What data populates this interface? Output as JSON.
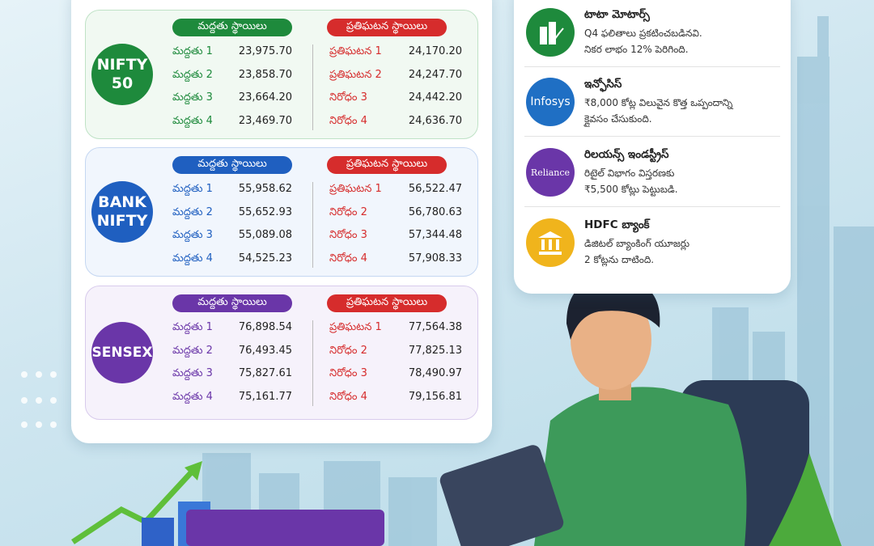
{
  "indices": [
    {
      "logo": [
        "NIFTY",
        "50"
      ],
      "color": "#1e8a3c",
      "tint": "#f1f9f2",
      "border": "#bfe2c6",
      "support_header": "మద్దతు స్థాయిలు",
      "resistance_header": "ప్రతిఘటన స్థాయిలు",
      "support": [
        {
          "label": "మద్దతు 1",
          "value": "23,975.70"
        },
        {
          "label": "మద్దతు 2",
          "value": "23,858.70"
        },
        {
          "label": "మద్దతు 3",
          "value": "23,664.20"
        },
        {
          "label": "మద్దతు 4",
          "value": "23,469.70"
        }
      ],
      "resistance": [
        {
          "label": "ప్రతిఘటన 1",
          "value": "24,170.20"
        },
        {
          "label": "ప్రతిఘటన 2",
          "value": "24,247.70"
        },
        {
          "label": "నిరోధం 3",
          "value": "24,442.20"
        },
        {
          "label": "నిరోధం 4",
          "value": "24,636.70"
        }
      ]
    },
    {
      "logo": [
        "BANK",
        "NIFTY"
      ],
      "color": "#1f5fc0",
      "tint": "#f1f6fd",
      "border": "#c5d7f2",
      "support_header": "మద్దతు స్థాయిలు",
      "resistance_header": "ప్రతిఘటన స్థాయిలు",
      "support": [
        {
          "label": "మద్దతు 1",
          "value": "55,958.62"
        },
        {
          "label": "మద్దతు 2",
          "value": "55,652.93"
        },
        {
          "label": "మద్దతు 3",
          "value": "55,089.08"
        },
        {
          "label": "మద్దతు 4",
          "value": "54,525.23"
        }
      ],
      "resistance": [
        {
          "label": "ప్రతిఘటన 1",
          "value": "56,522.47"
        },
        {
          "label": "నిరోధం 2",
          "value": "56,780.63"
        },
        {
          "label": "నిరోధం 3",
          "value": "57,344.48"
        },
        {
          "label": "నిరోధం 4",
          "value": "57,908.33"
        }
      ]
    },
    {
      "logo": [
        "SENSEX"
      ],
      "color": "#6a36a8",
      "tint": "#f6f2fb",
      "border": "#d8cbec",
      "support_header": "మద్దతు స్థాయిలు",
      "resistance_header": "ప్రతిఘటన స్థాయిలు",
      "support": [
        {
          "label": "మద్దతు 1",
          "value": "76,898.54"
        },
        {
          "label": "మద్దతు 2",
          "value": "76,493.45"
        },
        {
          "label": "మద్దతు 3",
          "value": "75,827.61"
        },
        {
          "label": "మద్దతు 4",
          "value": "75,161.77"
        }
      ],
      "resistance": [
        {
          "label": "ప్రతిఘటన 1",
          "value": "77,564.38"
        },
        {
          "label": "నిరోధం 2",
          "value": "77,825.13"
        },
        {
          "label": "నిరోధం 3",
          "value": "78,490.97"
        },
        {
          "label": "నిరోధం 4",
          "value": "79,156.81"
        }
      ]
    }
  ],
  "news": [
    {
      "title": "టాటా మోటార్స్",
      "logo": "",
      "color": "#1e8a3c",
      "lines": [
        "Q4 ఫలితాలు ప్రకటించబడినవి.",
        "నికర లాభం 12% పెరిగింది."
      ]
    },
    {
      "title": "ఇన్ఫోసిస్",
      "logo": "Infosys",
      "color": "#1f6fc4",
      "lines": [
        "₹8,000 కోట్ల విలువైన కొత్త ఒప్పందాన్ని",
        "క్లైవసం చేసుకుంది."
      ]
    },
    {
      "title": "రిలయన్స్ ఇండస్ట్రీస్",
      "logo": "Reliance",
      "color": "#6a36a8",
      "lines": [
        "రిటైల్ విభాగం విస్తరణకు",
        "₹5,500 కోట్లు పెట్టుబడి."
      ]
    },
    {
      "title": "HDFC బ్యాంక్",
      "logo": "",
      "color": "#f0b41c",
      "lines": [
        "డిజిటల్ బ్యాంకింగ్ యూజర్లు",
        "2 కోట్లను దాటింది."
      ]
    }
  ]
}
